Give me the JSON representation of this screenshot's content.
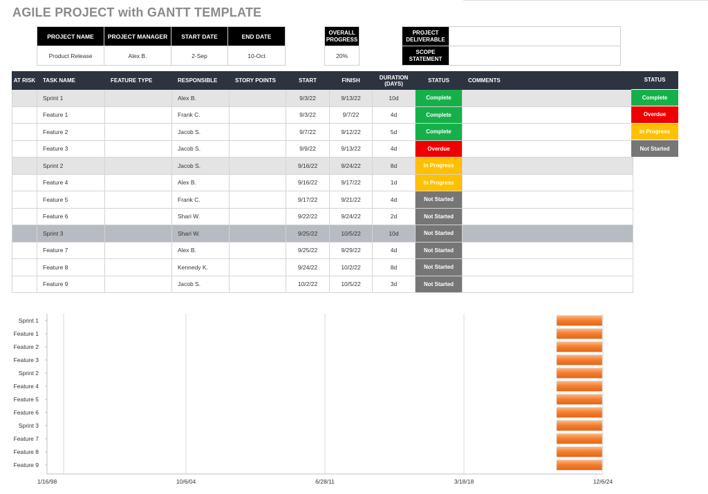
{
  "title": "AGILE PROJECT with GANTT TEMPLATE",
  "project": {
    "headers": [
      "PROJECT NAME",
      "PROJECT MANAGER",
      "START DATE",
      "END DATE"
    ],
    "values": [
      "Product Release",
      "Alex B.",
      "2-Sep",
      "10-Oct"
    ],
    "progress_header": "OVERALL PROGRESS",
    "progress_value": "20%",
    "deliverable_label": "PROJECT DELIVERABLE",
    "deliverable_value": "",
    "scope_label": "SCOPE STATEMENT",
    "scope_value": ""
  },
  "table": {
    "headers": {
      "at_risk": "AT RISK",
      "task": "TASK NAME",
      "feature": "FEATURE TYPE",
      "responsible": "RESPONSIBLE",
      "points": "STORY POINTS",
      "start": "START",
      "finish": "FINISH",
      "duration": "DURATION (DAYS)",
      "status": "STATUS",
      "comments": "COMMENTS"
    },
    "rows": [
      {
        "task": "Sprint 1",
        "responsible": "Alex B.",
        "start": "9/3/22",
        "finish": "9/13/22",
        "duration": "10d",
        "status": "Complete",
        "kind": "sprint"
      },
      {
        "task": "Feature 1",
        "responsible": "Frank C.",
        "start": "9/3/22",
        "finish": "9/7/22",
        "duration": "4d",
        "status": "Complete",
        "kind": "feature"
      },
      {
        "task": "Feature 2",
        "responsible": "Jacob S.",
        "start": "9/7/22",
        "finish": "9/12/22",
        "duration": "5d",
        "status": "Complete",
        "kind": "feature"
      },
      {
        "task": "Feature 3",
        "responsible": "Jacob S.",
        "start": "9/9/22",
        "finish": "9/13/22",
        "duration": "4d",
        "status": "Overdue",
        "kind": "feature"
      },
      {
        "task": "Sprint 2",
        "responsible": "Jacob S.",
        "start": "9/16/22",
        "finish": "9/24/22",
        "duration": "8d",
        "status": "In Progress",
        "kind": "sprint"
      },
      {
        "task": "Feature 4",
        "responsible": "Alex B.",
        "start": "9/16/22",
        "finish": "9/17/22",
        "duration": "1d",
        "status": "In Progress",
        "kind": "feature"
      },
      {
        "task": "Feature 5",
        "responsible": "Frank C.",
        "start": "9/17/22",
        "finish": "9/21/22",
        "duration": "4d",
        "status": "Not Started",
        "kind": "feature"
      },
      {
        "task": "Feature 6",
        "responsible": "Shari W.",
        "start": "9/22/22",
        "finish": "9/24/22",
        "duration": "2d",
        "status": "Not Started",
        "kind": "feature"
      },
      {
        "task": "Sprint 3",
        "responsible": "Shari W.",
        "start": "9/25/22",
        "finish": "10/5/22",
        "duration": "10d",
        "status": "Not Started",
        "kind": "sprint3"
      },
      {
        "task": "Feature 7",
        "responsible": "Alex B.",
        "start": "9/25/22",
        "finish": "9/29/22",
        "duration": "4d",
        "status": "Not Started",
        "kind": "feature"
      },
      {
        "task": "Feature 8",
        "responsible": "Kennedy K.",
        "start": "9/24/22",
        "finish": "10/2/22",
        "duration": "8d",
        "status": "Not Started",
        "kind": "feature"
      },
      {
        "task": "Feature 9",
        "responsible": "Jacob S.",
        "start": "10/2/22",
        "finish": "10/5/22",
        "duration": "3d",
        "status": "Not Started",
        "kind": "feature"
      }
    ]
  },
  "legend": {
    "header": "STATUS",
    "items": [
      "Complete",
      "Overdue",
      "In Progress",
      "Not Started"
    ]
  },
  "colors": {
    "Complete": "#16b04a",
    "Overdue": "#ee0000",
    "In Progress": "#ffc000",
    "Not Started": "#767676",
    "header_dark": "#2d3440",
    "bar": "#f47c2a"
  },
  "gantt": {
    "tasks": [
      "Sprint 1",
      "Feature 1",
      "Feature 2",
      "Feature 3",
      "Sprint 2",
      "Feature 4",
      "Feature 5",
      "Feature 6",
      "Sprint 3",
      "Feature 7",
      "Feature 8",
      "Feature 9"
    ],
    "x_ticks": [
      "1/16/98",
      "10/6/04",
      "6/28/11",
      "3/18/18",
      "12/6/24"
    ]
  }
}
